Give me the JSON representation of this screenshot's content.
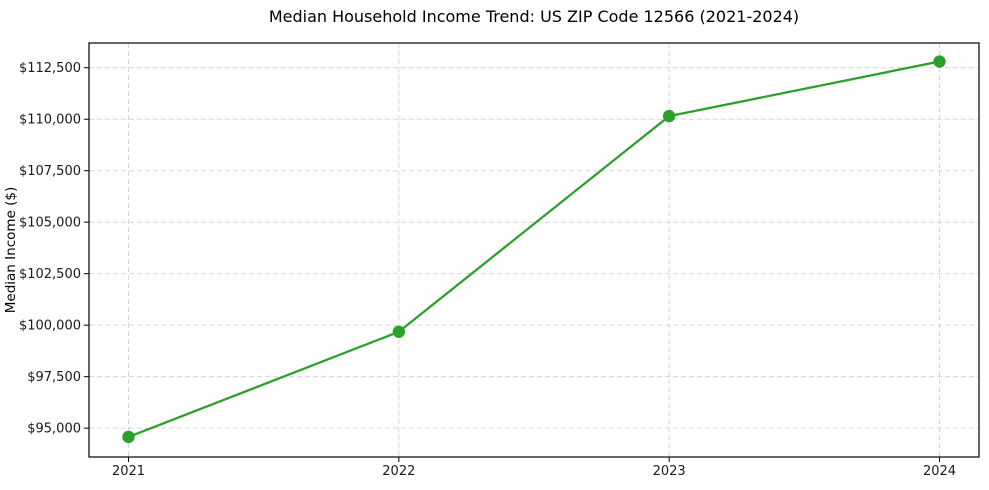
{
  "figure": {
    "background": "#ffffff"
  },
  "chart_data": {
    "type": "line",
    "title": "Median Household Income Trend: US ZIP Code 12566 (2021-2024)",
    "xlabel": "",
    "ylabel": "Median Income ($)",
    "categories": [
      "2021",
      "2022",
      "2023",
      "2024"
    ],
    "series": [
      {
        "values": [
          94575,
          99680,
          110150,
          112800
        ],
        "color": "#2ca02c",
        "marker": "circle",
        "line_width": 2.3,
        "marker_radius": 6.2
      }
    ],
    "yticks": [
      {
        "value": 95000,
        "label": "$95,000"
      },
      {
        "value": 97500,
        "label": "$97,500"
      },
      {
        "value": 100000,
        "label": "$100,000"
      },
      {
        "value": 102500,
        "label": "$102,500"
      },
      {
        "value": 105000,
        "label": "$105,000"
      },
      {
        "value": 107500,
        "label": "$107,500"
      },
      {
        "value": 110000,
        "label": "$110,000"
      },
      {
        "value": 112500,
        "label": "$112,500"
      }
    ],
    "ylim": [
      93600,
      113700
    ],
    "grid": {
      "visible": true,
      "line_style": "dashed",
      "color": "#d6d6d6"
    },
    "legend_visible": false,
    "axis_color": "#000000",
    "tick_label_color": "#1a1a1a"
  }
}
